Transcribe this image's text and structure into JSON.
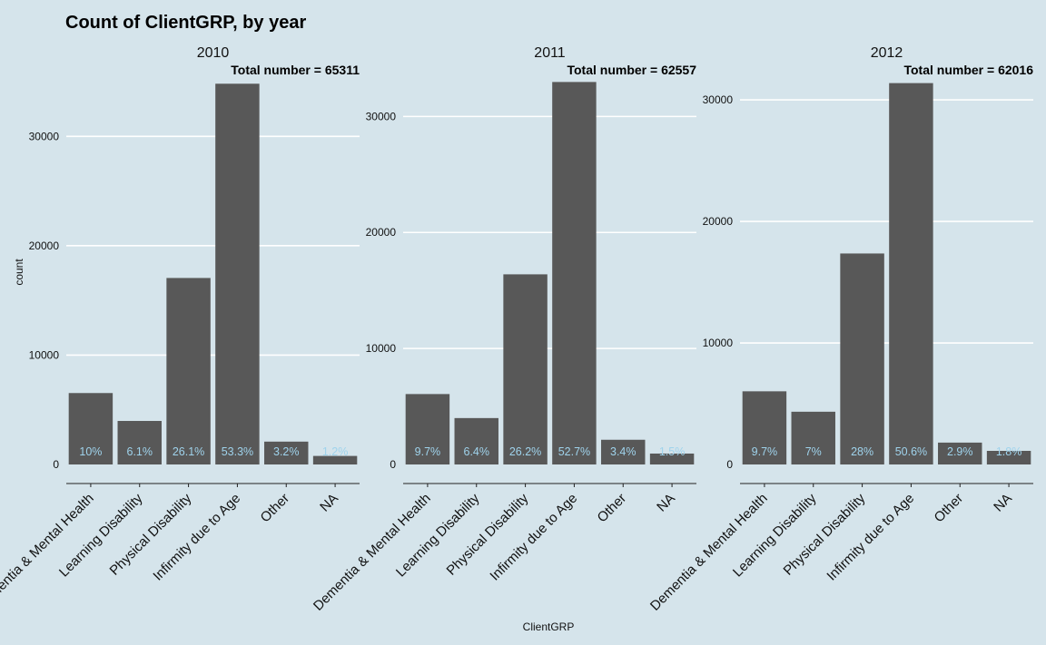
{
  "chart_data": {
    "type": "bar",
    "title": "Count of ClientGRP, by year",
    "xlabel": "ClientGRP",
    "ylabel": "count",
    "grid": true,
    "colors": {
      "background": "#d5e4eb",
      "bar": "#585858",
      "label": "#9fd3ec",
      "grid": "#ffffff"
    },
    "categories": [
      "Dementia & Mental Health",
      "Learning Disability",
      "Physical Disability",
      "Infirmity due to Age",
      "Other",
      "NA"
    ],
    "panels": [
      {
        "year": "2010",
        "total_label": "Total number = 65311",
        "ylim": [
          0,
          35000
        ],
        "yticks": [
          0,
          10000,
          20000,
          30000
        ],
        "values": [
          6530,
          3980,
          17050,
          34810,
          2090,
          780
        ],
        "pct_labels": [
          "10%",
          "6.1%",
          "26.1%",
          "53.3%",
          "3.2%",
          "1.2%"
        ]
      },
      {
        "year": "2011",
        "total_label": "Total number = 62557",
        "ylim": [
          0,
          33000
        ],
        "yticks": [
          0,
          10000,
          20000,
          30000
        ],
        "values": [
          6070,
          4000,
          16390,
          32970,
          2130,
          940
        ],
        "pct_labels": [
          "9.7%",
          "6.4%",
          "26.2%",
          "52.7%",
          "3.4%",
          "1.5%"
        ]
      },
      {
        "year": "2012",
        "total_label": "Total number = 62016",
        "ylim": [
          0,
          31500
        ],
        "yticks": [
          0,
          10000,
          20000,
          30000
        ],
        "values": [
          6020,
          4340,
          17360,
          31380,
          1800,
          1120
        ],
        "pct_labels": [
          "9.7%",
          "7%",
          "28%",
          "50.6%",
          "2.9%",
          "1.8%"
        ]
      }
    ]
  }
}
